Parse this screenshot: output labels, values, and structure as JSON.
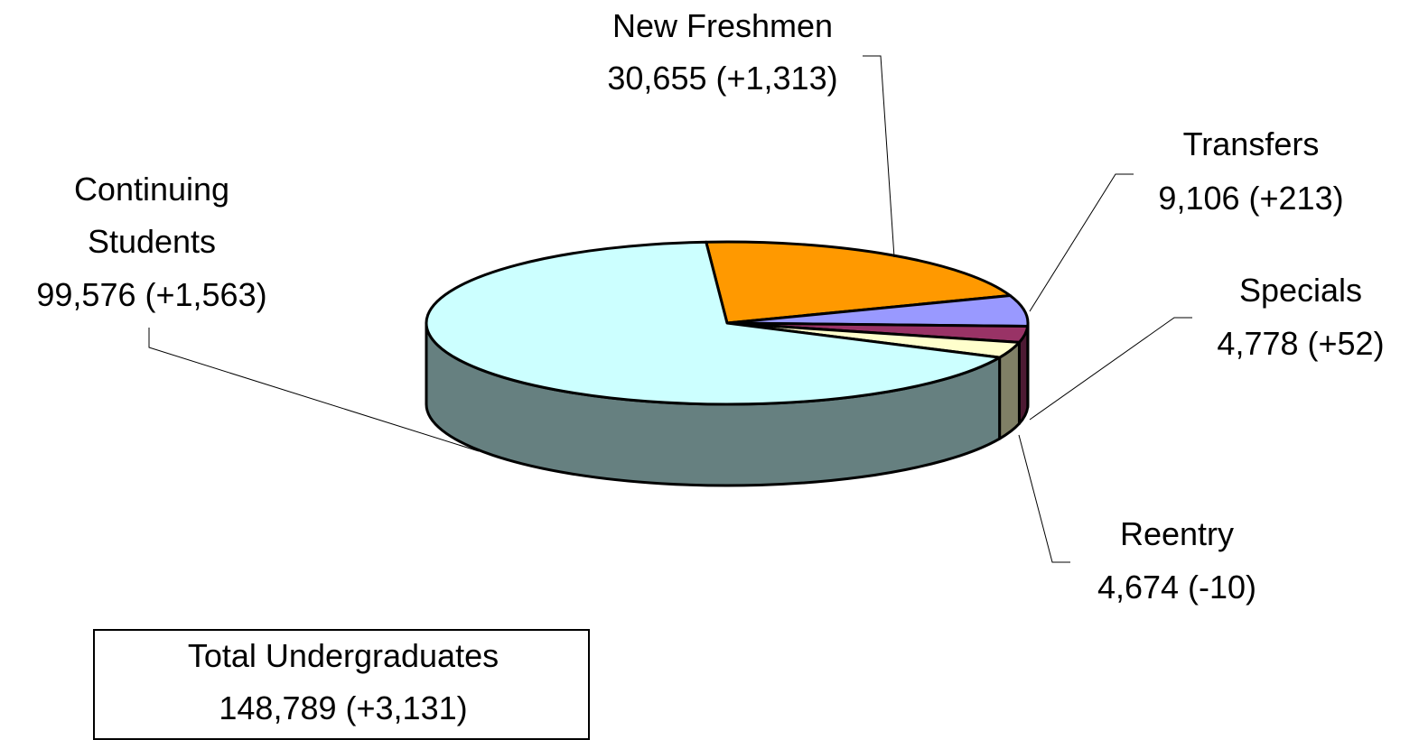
{
  "chart_data": {
    "type": "pie",
    "categories": [
      "Continuing Students",
      "New Freshmen",
      "Transfers",
      "Specials",
      "Reentry"
    ],
    "values": [
      99576,
      30655,
      9106,
      4778,
      4674
    ],
    "value_labels": [
      "99,576 (+1,563)",
      "30,655 (+1,313)",
      "9,106 (+213)",
      "4,778 (+52)",
      "4,674 (-10)"
    ],
    "colors": [
      "#ccffff",
      "#ff9900",
      "#9999ff",
      "#993366",
      "#ffffcc"
    ],
    "annotations": [
      "Total Undergraduates",
      "148,789 (+3,131)"
    ]
  }
}
